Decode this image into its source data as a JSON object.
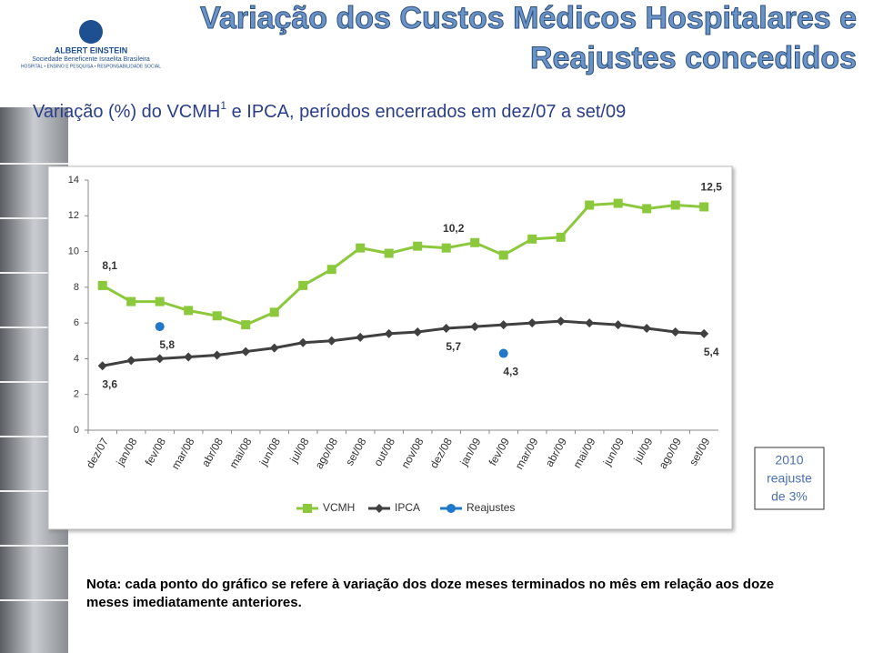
{
  "header": {
    "logo_name": "ALBERT EINSTEIN",
    "logo_subtitle": "Sociedade Beneficente Israelita Brasileira",
    "logo_tagline": "HOSPITAL • ENSINO E PESQUISA • RESPONSABILIDADE SOCIAL",
    "title_lines": [
      "Variação dos Custos Médicos Hospitalares e",
      "Reajustes concedidos"
    ]
  },
  "subtitle": {
    "main": "Variação (%) do VCMH",
    "superscript": "1",
    "rest": " e IPCA, períodos encerrados em dez/07 a set/09"
  },
  "chart_data": {
    "type": "line",
    "categories": [
      "dez/07",
      "jan/08",
      "fev/08",
      "mar/08",
      "abr/08",
      "mai/08",
      "jun/08",
      "jul/08",
      "ago/08",
      "set/08",
      "out/08",
      "nov/08",
      "dez/08",
      "jan/09",
      "fev/09",
      "mar/09",
      "abr/09",
      "mai/09",
      "jun/09",
      "jul/09",
      "ago/09",
      "set/09"
    ],
    "series": [
      {
        "name": "VCMH",
        "color": "#8cc83c",
        "marker": "square",
        "values": [
          8.1,
          7.2,
          7.2,
          6.7,
          6.4,
          5.9,
          6.6,
          8.1,
          9.0,
          10.2,
          9.9,
          10.3,
          10.2,
          10.5,
          9.8,
          10.7,
          10.8,
          12.6,
          12.7,
          12.4,
          12.6,
          12.5
        ],
        "value_labels": [
          "8,1",
          null,
          null,
          null,
          null,
          null,
          null,
          null,
          null,
          null,
          null,
          null,
          "10,2",
          null,
          null,
          null,
          null,
          null,
          null,
          null,
          null,
          "12,5"
        ]
      },
      {
        "name": "IPCA",
        "color": "#404040",
        "marker": "diamond",
        "values": [
          3.6,
          3.9,
          4.0,
          4.1,
          4.2,
          4.4,
          4.6,
          4.9,
          5.0,
          5.2,
          5.4,
          5.5,
          5.7,
          5.8,
          5.9,
          6.0,
          6.1,
          6.0,
          5.9,
          5.7,
          5.5,
          5.4
        ],
        "value_labels": [
          "3,6",
          null,
          null,
          null,
          null,
          null,
          null,
          null,
          null,
          null,
          null,
          null,
          "5,7",
          null,
          null,
          null,
          null,
          null,
          null,
          null,
          null,
          "5,4"
        ]
      },
      {
        "name": "Reajustes",
        "color": "#1f78c8",
        "marker": "circle",
        "markers_only": true,
        "values": [
          null,
          null,
          5.8,
          null,
          null,
          null,
          null,
          null,
          null,
          null,
          null,
          null,
          null,
          null,
          4.3,
          null,
          null,
          null,
          null,
          null,
          null,
          null
        ],
        "value_labels": [
          null,
          null,
          "5,8",
          null,
          null,
          null,
          null,
          null,
          null,
          null,
          null,
          null,
          null,
          null,
          "4,3",
          null,
          null,
          null,
          null,
          null,
          null,
          null
        ]
      }
    ],
    "ylim": [
      0,
      14
    ],
    "yticks": [
      0,
      2,
      4,
      6,
      8,
      10,
      12,
      14
    ],
    "grid": false,
    "legend": "bottom"
  },
  "side_box": [
    "2010",
    "reajuste",
    "de 3%"
  ],
  "note": [
    "Nota: cada ponto do gráfico se refere à variação dos doze meses terminados no mês em relação aos doze",
    "meses imediatamente anteriores."
  ]
}
